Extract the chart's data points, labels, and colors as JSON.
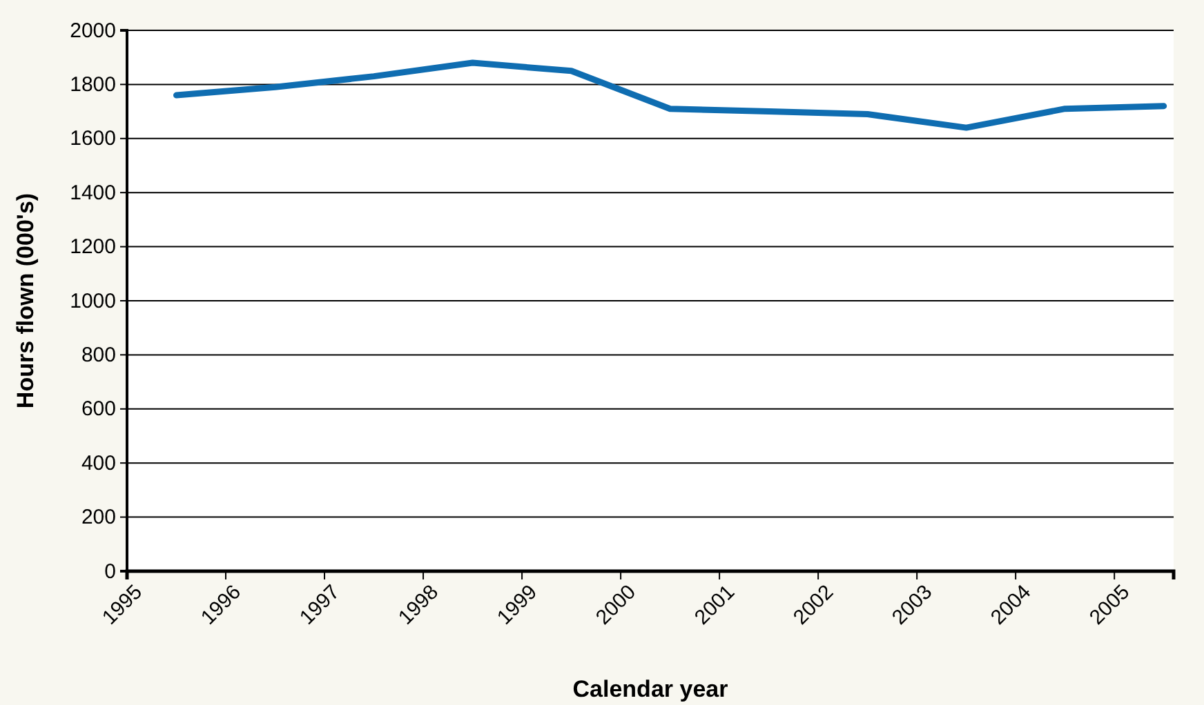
{
  "chart_data": {
    "type": "line",
    "xlabel": "Calendar year",
    "ylabel": "Hours flown (000's)",
    "x": [
      1995.5,
      1996.5,
      1997.5,
      1998.5,
      1999.5,
      2000.5,
      2001.5,
      2002.5,
      2003.5,
      2004.5,
      2005.5
    ],
    "series": [
      {
        "color": "#0f6db1",
        "values": [
          1760,
          1790,
          1830,
          1880,
          1850,
          1710,
          1700,
          1690,
          1640,
          1710,
          1720
        ]
      }
    ],
    "xlim": [
      1995,
      2005.6
    ],
    "xticks": [
      1995,
      1996,
      1997,
      1998,
      1999,
      2000,
      2001,
      2002,
      2003,
      2004,
      2005
    ],
    "ylim": [
      0,
      2000
    ],
    "yticks": [
      0,
      200,
      400,
      600,
      800,
      1000,
      1200,
      1400,
      1600,
      1800,
      2000
    ],
    "grid": "y",
    "marker": "none",
    "line_style": "solid"
  }
}
